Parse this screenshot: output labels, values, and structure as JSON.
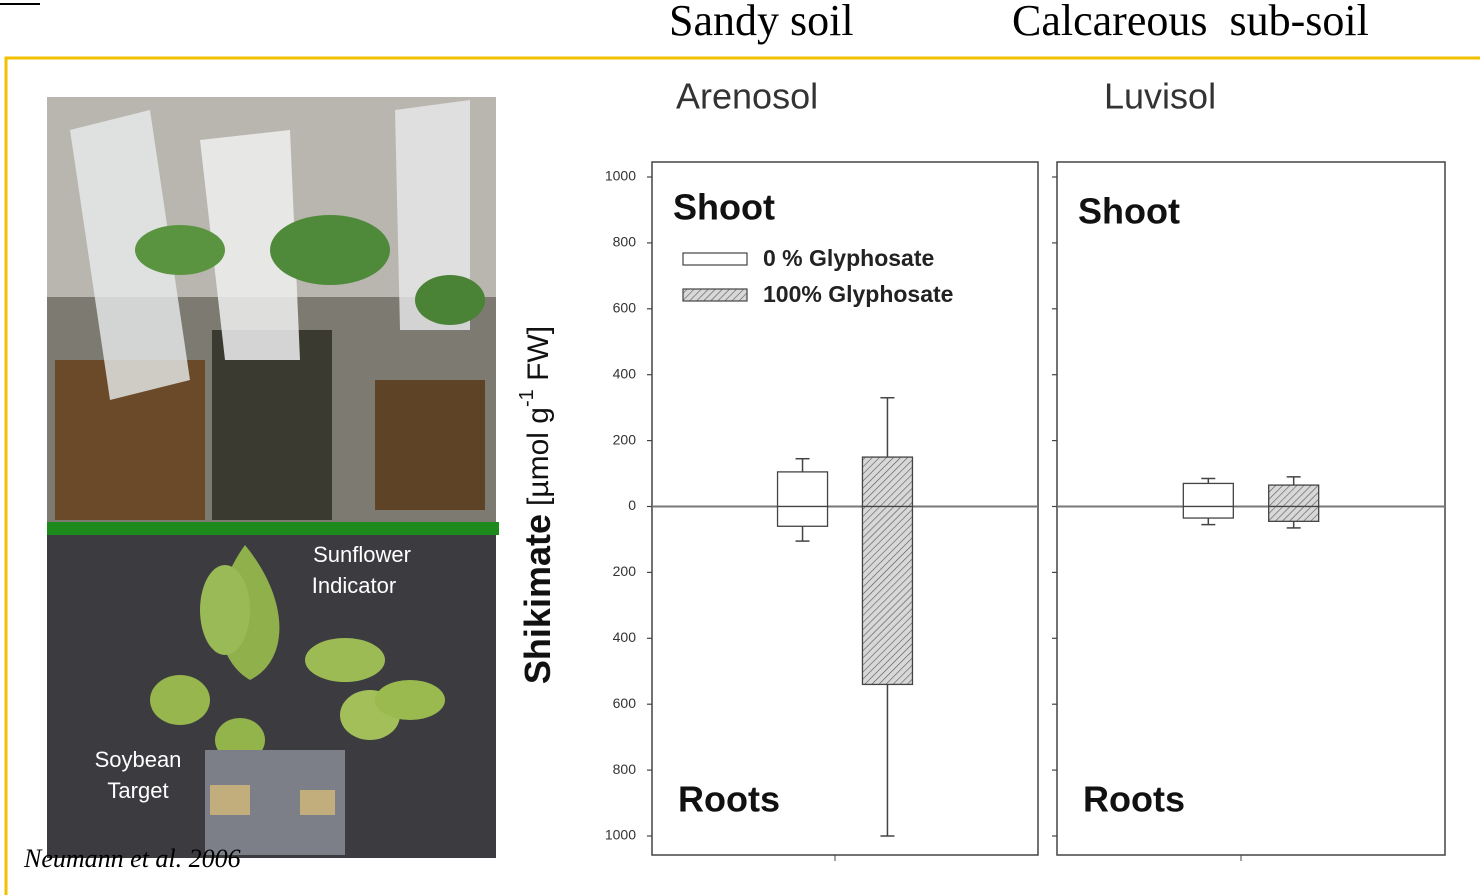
{
  "citation": "Neumann et al. 2006",
  "photo_labels": {
    "indicator": [
      "Sunflower",
      "Indicator"
    ],
    "target": [
      "Soybean",
      "Target"
    ]
  },
  "chart_data": [
    {
      "type": "bar",
      "subtitle": "Sandy soil",
      "title": "Arenosol",
      "ylabel": {
        "main": "Shikimate",
        "unit": "[µmol g",
        "sup": "-1",
        "unit_end": " FW]"
      },
      "categories": [
        "Shoot",
        "Roots"
      ],
      "series": [
        {
          "name": "0 % Glyphosate",
          "color": "#ffffff",
          "values": [
            105,
            -60
          ],
          "errors": [
            40,
            45
          ]
        },
        {
          "name": "100% Glyphosate",
          "color": "#c8c8c8",
          "hatch": true,
          "values": [
            150,
            -540
          ],
          "errors": [
            180,
            460
          ]
        }
      ],
      "ylim": [
        -1000,
        1000
      ],
      "yticks": [
        {
          "value": -1000,
          "label": "1000"
        },
        {
          "value": -800,
          "label": "800"
        },
        {
          "value": -600,
          "label": "600"
        },
        {
          "value": -400,
          "label": "400"
        },
        {
          "value": -200,
          "label": "200"
        },
        0,
        200,
        400,
        600,
        800,
        1000
      ],
      "tick_labels": true,
      "legend": "upper left"
    },
    {
      "type": "bar",
      "subtitle": "Calcareous  sub-soil",
      "title": "Luvisol",
      "categories": [
        "Shoot",
        "Roots"
      ],
      "series": [
        {
          "color": "#ffffff",
          "values": [
            70,
            -35
          ],
          "errors": [
            15,
            20
          ]
        },
        {
          "color": "#c8c8c8",
          "hatch": true,
          "values": [
            65,
            -45
          ],
          "errors": [
            25,
            20
          ]
        }
      ],
      "ylim": [
        -1000,
        1000
      ],
      "yticks": [
        -1000,
        -800,
        -600,
        -400,
        -200,
        0,
        200,
        400,
        600,
        800,
        1000
      ],
      "tick_labels": false
    }
  ]
}
